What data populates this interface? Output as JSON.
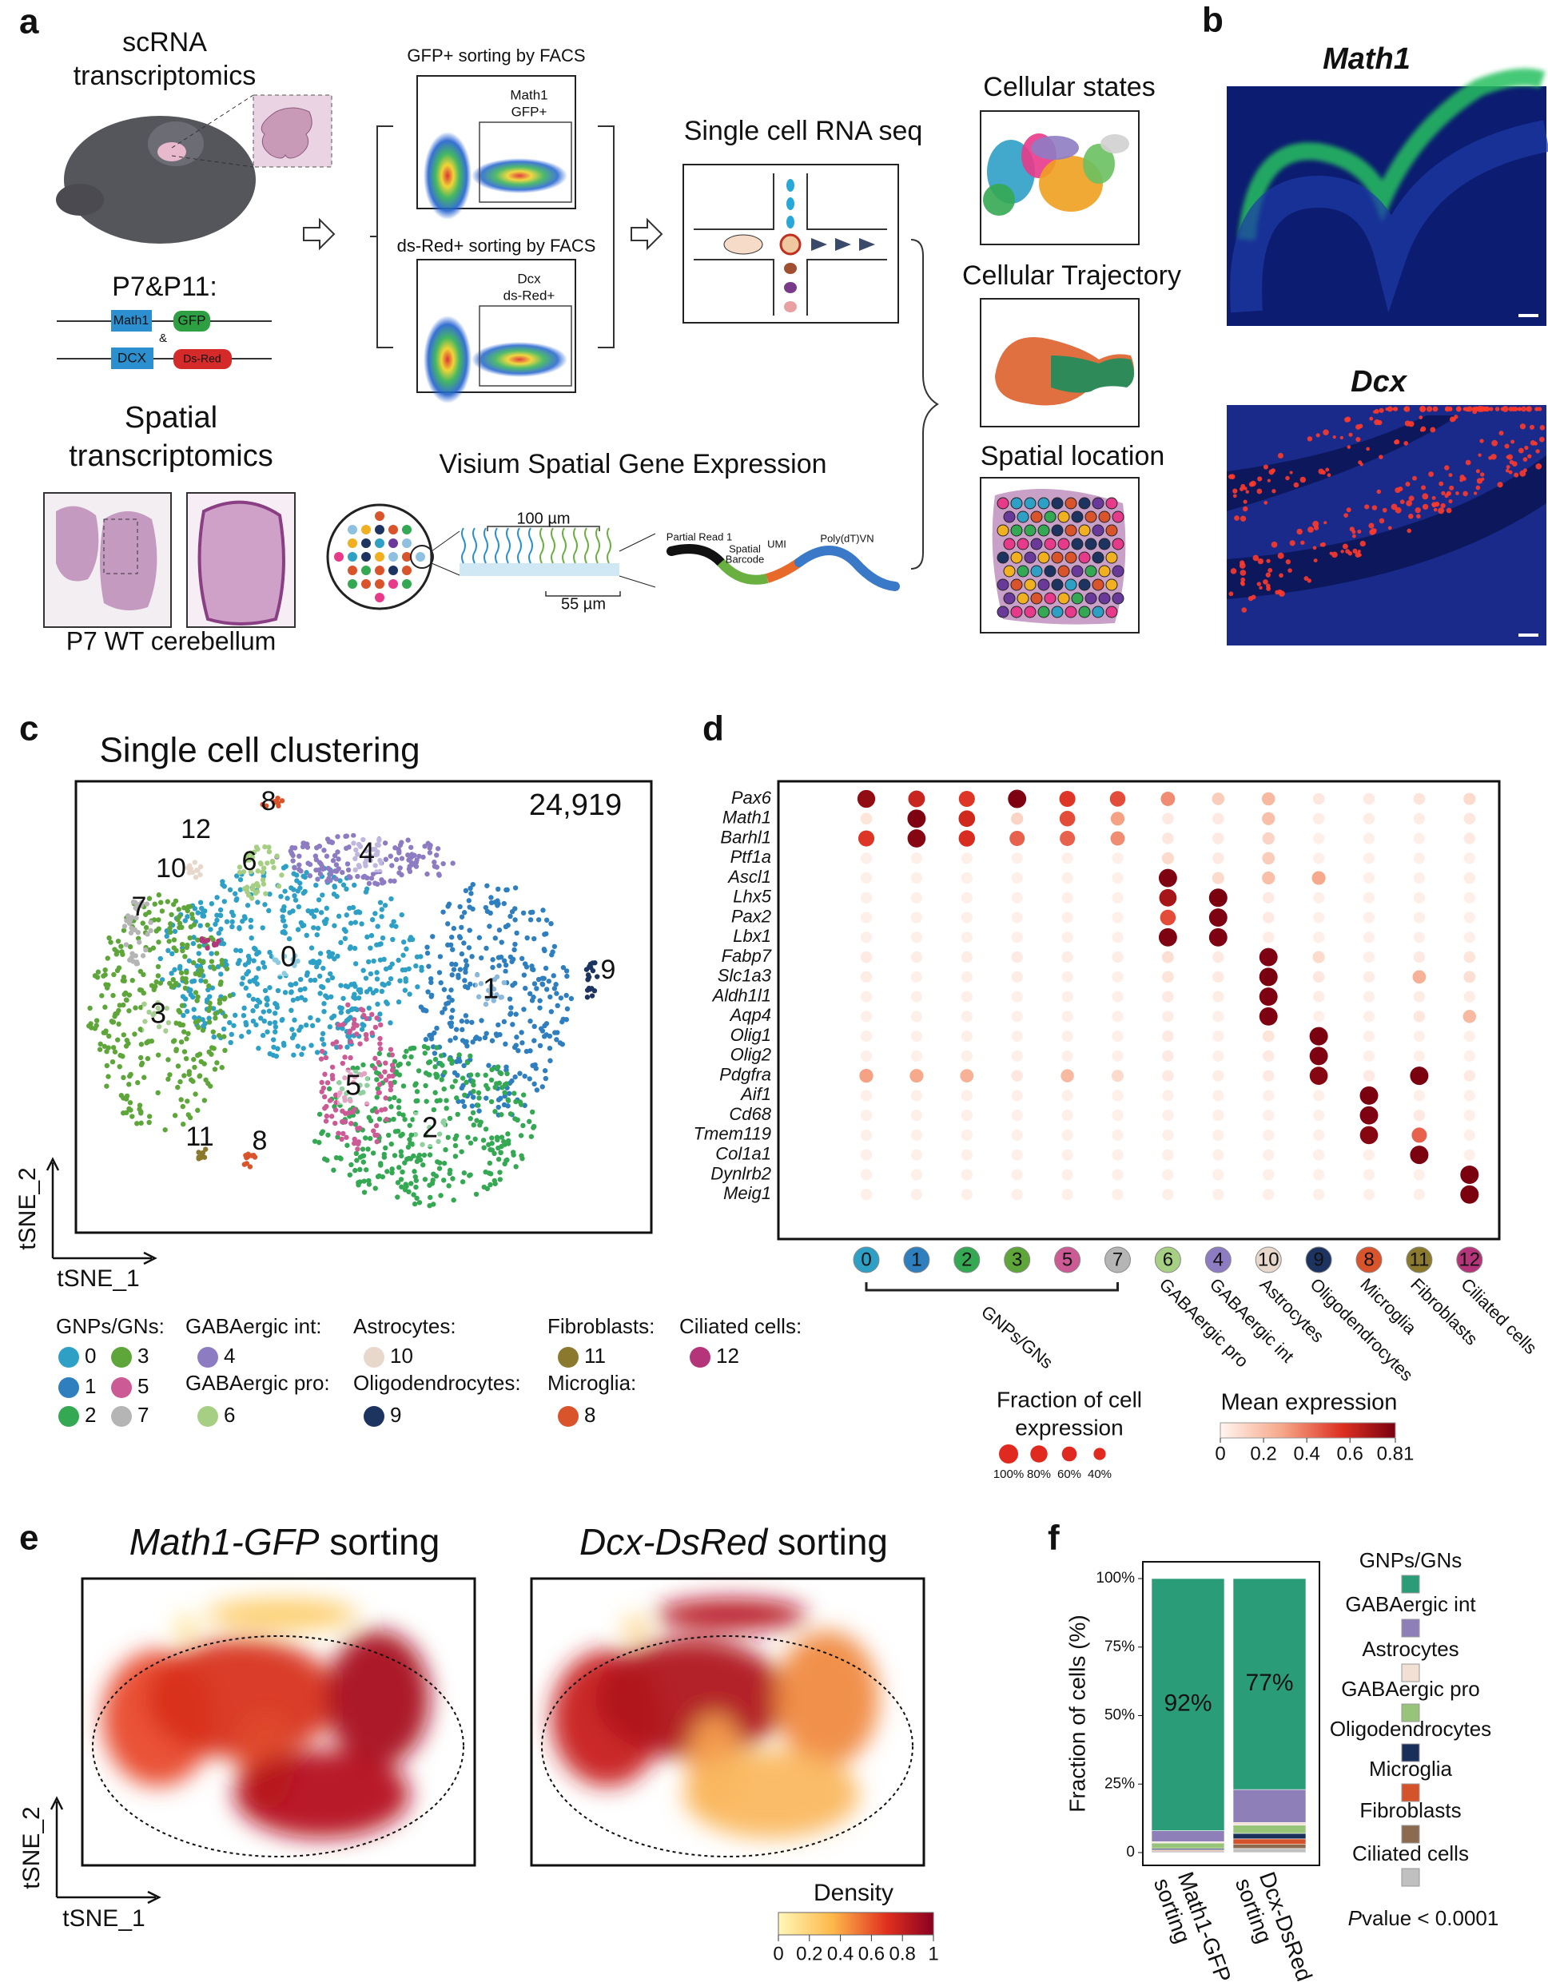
{
  "panel_labels": [
    "a",
    "b",
    "c",
    "d",
    "e",
    "f"
  ],
  "a": {
    "scrna_title": [
      "scRNA",
      "transcriptomics"
    ],
    "ages": "P7&P11:",
    "constructs": [
      "Math1",
      "GFP",
      "&",
      "DCX",
      "Ds-Red"
    ],
    "spatial_title": [
      "Spatial",
      "transcriptomics"
    ],
    "section_label": "P7 WT cerebellum",
    "facs": [
      {
        "title": "GFP+  sorting by FACS",
        "gate": [
          "Math1",
          "GFP+"
        ]
      },
      {
        "title": "ds-Red+  sorting by FACS",
        "gate": [
          "Dcx",
          "ds-Red+"
        ]
      }
    ],
    "scrna_seq": "Single cell RNA seq",
    "visium": "Visium Spatial Gene Expression",
    "scale": [
      "100 µm",
      "55 µm"
    ],
    "read": [
      "Partial Read 1",
      "Spatial",
      "Barcode",
      "UMI",
      "Poly(dT)VN"
    ],
    "outputs": [
      "Cellular states",
      "Cellular Trajectory",
      "Spatial location"
    ]
  },
  "b": {
    "genes": [
      "Math1",
      "Dcx"
    ]
  },
  "c": {
    "title": "Single cell clustering",
    "cell_count": "24,919",
    "axes": [
      "tSNE_1",
      "tSNE_2"
    ],
    "clusters": [
      {
        "id": "0",
        "color": "#2ea0c6"
      },
      {
        "id": "1",
        "color": "#2f7fbf"
      },
      {
        "id": "2",
        "color": "#35a853"
      },
      {
        "id": "3",
        "color": "#5ea63a"
      },
      {
        "id": "4",
        "color": "#8e7cc3"
      },
      {
        "id": "5",
        "color": "#cc5a94"
      },
      {
        "id": "6",
        "color": "#a6cf83"
      },
      {
        "id": "7",
        "color": "#b5b5b5"
      },
      {
        "id": "8",
        "color": "#d9532b"
      },
      {
        "id": "9",
        "color": "#1d3461"
      },
      {
        "id": "10",
        "color": "#e8d8cc"
      },
      {
        "id": "11",
        "color": "#8b7a2e"
      },
      {
        "id": "12",
        "color": "#b5357a"
      }
    ],
    "legend": [
      {
        "name": "GNPs/GNs:",
        "members": [
          "0",
          "3",
          "1",
          "5",
          "2",
          "7"
        ]
      },
      {
        "name": "GABAergic int:",
        "members": [
          "4"
        ]
      },
      {
        "name": "GABAergic pro:",
        "members": [
          "6"
        ]
      },
      {
        "name": "Astrocytes:",
        "members": [
          "10"
        ]
      },
      {
        "name": "Oligodendrocytes:",
        "members": [
          "9"
        ]
      },
      {
        "name": "Fibroblasts:",
        "members": [
          "11"
        ]
      },
      {
        "name": "Microglia:",
        "members": [
          "8"
        ]
      },
      {
        "name": "Ciliated cells:",
        "members": [
          "12"
        ]
      }
    ]
  },
  "e": {
    "titles": [
      {
        "italic": "Math1-GFP",
        "text": " sorting"
      },
      {
        "italic": "Dcx-DsRed",
        "text": " sorting"
      }
    ],
    "axes": [
      "tSNE_1",
      "tSNE_2"
    ],
    "density_legend": {
      "title": "Density",
      "lim": [
        0,
        1
      ],
      "ticks": [
        0,
        0.2,
        0.4,
        0.6,
        0.8,
        1
      ]
    }
  },
  "chart_data": [
    {
      "type": "dot",
      "genes": [
        "Pax6",
        "Math1",
        "Barhl1",
        "Ptf1a",
        "Ascl1",
        "Lhx5",
        "Pax2",
        "Lbx1",
        "Fabp7",
        "Slc1a3",
        "Aldh1l1",
        "Aqp4",
        "Olig1",
        "Olig2",
        "Pdgfra",
        "Aif1",
        "Cd68",
        "Tmem119",
        "Col1a1",
        "Dynlrb2",
        "Meig1"
      ],
      "categories": [
        "0",
        "1",
        "2",
        "3",
        "5",
        "7",
        "6",
        "4",
        "10",
        "9",
        "8",
        "11",
        "12"
      ],
      "category_colors": [
        "#2ea0c6",
        "#2f7fbf",
        "#35a853",
        "#5ea63a",
        "#cc5a94",
        "#b5b5b5",
        "#a6cf83",
        "#8e7cc3",
        "#e8d8cc",
        "#1d3461",
        "#d9532b",
        "#8b7a2e",
        "#b5357a"
      ],
      "group_label": "GNPs/GNs",
      "cell_types": [
        "GABAergic pro",
        "GABAergic int",
        "Astrocytes",
        "Oligodendrocytes",
        "Microglia",
        "Fibroblasts",
        "Ciliated cells"
      ],
      "values": [
        [
          0.75,
          0.62,
          0.55,
          0.8,
          0.55,
          0.5,
          0.35,
          0.15,
          0.22,
          0.05,
          0.04,
          0.06,
          0.1
        ],
        [
          0.06,
          0.8,
          0.6,
          0.12,
          0.5,
          0.3,
          0.04,
          0.04,
          0.2,
          0.03,
          0.03,
          0.03,
          0.05
        ],
        [
          0.55,
          0.78,
          0.58,
          0.45,
          0.45,
          0.35,
          0.05,
          0.04,
          0.12,
          0.02,
          0.02,
          0.02,
          0.04
        ],
        [
          0.02,
          0.02,
          0.02,
          0.02,
          0.02,
          0.02,
          0.1,
          0.04,
          0.15,
          0.02,
          0.02,
          0.02,
          0.02
        ],
        [
          0.02,
          0.02,
          0.02,
          0.02,
          0.02,
          0.02,
          0.8,
          0.1,
          0.2,
          0.28,
          0.02,
          0.02,
          0.03
        ],
        [
          0.02,
          0.02,
          0.02,
          0.02,
          0.02,
          0.02,
          0.7,
          0.81,
          0.04,
          0.02,
          0.02,
          0.02,
          0.02
        ],
        [
          0.02,
          0.02,
          0.02,
          0.02,
          0.02,
          0.02,
          0.5,
          0.8,
          0.04,
          0.02,
          0.02,
          0.02,
          0.02
        ],
        [
          0.02,
          0.02,
          0.02,
          0.02,
          0.02,
          0.02,
          0.8,
          0.8,
          0.03,
          0.02,
          0.02,
          0.02,
          0.02
        ],
        [
          0.04,
          0.03,
          0.03,
          0.04,
          0.03,
          0.03,
          0.08,
          0.04,
          0.8,
          0.1,
          0.02,
          0.04,
          0.06
        ],
        [
          0.03,
          0.02,
          0.02,
          0.03,
          0.02,
          0.02,
          0.06,
          0.04,
          0.81,
          0.05,
          0.03,
          0.25,
          0.08
        ],
        [
          0.02,
          0.02,
          0.02,
          0.02,
          0.02,
          0.02,
          0.04,
          0.03,
          0.8,
          0.03,
          0.02,
          0.03,
          0.03
        ],
        [
          0.02,
          0.02,
          0.02,
          0.02,
          0.02,
          0.02,
          0.03,
          0.02,
          0.8,
          0.02,
          0.02,
          0.05,
          0.22
        ],
        [
          0.02,
          0.02,
          0.02,
          0.02,
          0.02,
          0.02,
          0.04,
          0.02,
          0.06,
          0.81,
          0.02,
          0.02,
          0.02
        ],
        [
          0.02,
          0.02,
          0.02,
          0.02,
          0.02,
          0.02,
          0.04,
          0.02,
          0.04,
          0.8,
          0.02,
          0.02,
          0.02
        ],
        [
          0.3,
          0.28,
          0.25,
          0.05,
          0.22,
          0.1,
          0.04,
          0.03,
          0.04,
          0.78,
          0.04,
          0.81,
          0.04
        ],
        [
          0.02,
          0.02,
          0.02,
          0.02,
          0.02,
          0.02,
          0.02,
          0.02,
          0.02,
          0.02,
          0.81,
          0.02,
          0.02
        ],
        [
          0.02,
          0.02,
          0.02,
          0.02,
          0.02,
          0.02,
          0.02,
          0.02,
          0.02,
          0.02,
          0.8,
          0.04,
          0.02
        ],
        [
          0.02,
          0.02,
          0.02,
          0.02,
          0.02,
          0.02,
          0.02,
          0.02,
          0.02,
          0.02,
          0.78,
          0.45,
          0.02
        ],
        [
          0.02,
          0.02,
          0.02,
          0.02,
          0.02,
          0.02,
          0.02,
          0.02,
          0.02,
          0.02,
          0.02,
          0.81,
          0.02
        ],
        [
          0.02,
          0.02,
          0.02,
          0.02,
          0.02,
          0.02,
          0.02,
          0.02,
          0.02,
          0.02,
          0.02,
          0.02,
          0.81
        ],
        [
          0.02,
          0.02,
          0.02,
          0.02,
          0.02,
          0.02,
          0.02,
          0.02,
          0.02,
          0.02,
          0.02,
          0.02,
          0.81
        ]
      ],
      "size_legend": {
        "title": [
          "Fraction of cell",
          "expression"
        ],
        "items": [
          {
            "value": 100,
            "label": "100%"
          },
          {
            "value": 80,
            "label": "80%"
          },
          {
            "value": 60,
            "label": "60%"
          },
          {
            "value": 40,
            "label": "40%"
          }
        ]
      },
      "color_legend": {
        "title": "Mean expression",
        "lim": [
          0,
          0.81
        ],
        "ticks": [
          0,
          0.2,
          0.4,
          0.6,
          0.81
        ]
      }
    },
    {
      "type": "stacked-bar",
      "categories": [
        [
          "Math1-GFP",
          "sorting"
        ],
        [
          "Dcx-DsRed",
          "sorting"
        ]
      ],
      "ylabel": "Fraction of cells (%)",
      "ylim": [
        0,
        100
      ],
      "yticks": [
        0,
        {
          "value": 25,
          "label": "25%"
        },
        {
          "value": 50,
          "label": "50%"
        },
        {
          "value": 75,
          "label": "75%"
        },
        {
          "value": 100,
          "label": "100%"
        }
      ],
      "series": [
        {
          "name": "GNPs/GNs",
          "color": "#2a9d78",
          "values": [
            92,
            77
          ],
          "value_labels": [
            "92%",
            "77%"
          ]
        },
        {
          "name": "GABAergic int",
          "color": "#8f7fb8",
          "values": [
            4,
            12
          ]
        },
        {
          "name": "Astrocytes",
          "color": "#f2e0d5",
          "values": [
            0.5,
            1
          ]
        },
        {
          "name": "GABAergic pro",
          "color": "#98c47a",
          "values": [
            2,
            3
          ]
        },
        {
          "name": "Oligodendrocytes",
          "color": "#1a2e5a",
          "values": [
            0.5,
            2
          ]
        },
        {
          "name": "Microglia",
          "color": "#d4532a",
          "values": [
            0.3,
            2
          ]
        },
        {
          "name": "Fibroblasts",
          "color": "#8b6a4f",
          "values": [
            0.3,
            1.5
          ]
        },
        {
          "name": "Ciliated cells",
          "color": "#c0c0c0",
          "values": [
            0.4,
            1.5
          ]
        }
      ],
      "annotation": {
        "italic": "P",
        "text": "value < 0.0001"
      }
    }
  ]
}
